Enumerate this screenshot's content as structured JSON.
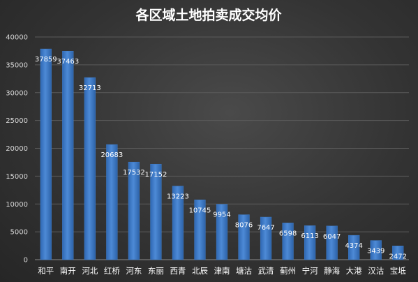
{
  "chart_data": {
    "type": "bar",
    "title": "各区域土地拍卖成交均价",
    "categories": [
      "和平",
      "南开",
      "河北",
      "红桥",
      "河东",
      "东丽",
      "西青",
      "北辰",
      "津南",
      "塘沽",
      "武清",
      "蓟州",
      "宁河",
      "静海",
      "大港",
      "汉沽",
      "宝坻"
    ],
    "values": [
      37859,
      37463,
      32713,
      20683,
      17532,
      17152,
      13223,
      10745,
      9954,
      8076,
      7647,
      6598,
      6113,
      6047,
      4374,
      3439,
      2472
    ],
    "y_ticks": [
      "0",
      "5000",
      "10000",
      "15000",
      "20000",
      "25000",
      "30000",
      "35000",
      "40000"
    ],
    "ylim": [
      0,
      40000
    ],
    "grid": true,
    "legend": "none",
    "bar_color": "#3e7cc9",
    "background": "#3a3a3a"
  }
}
